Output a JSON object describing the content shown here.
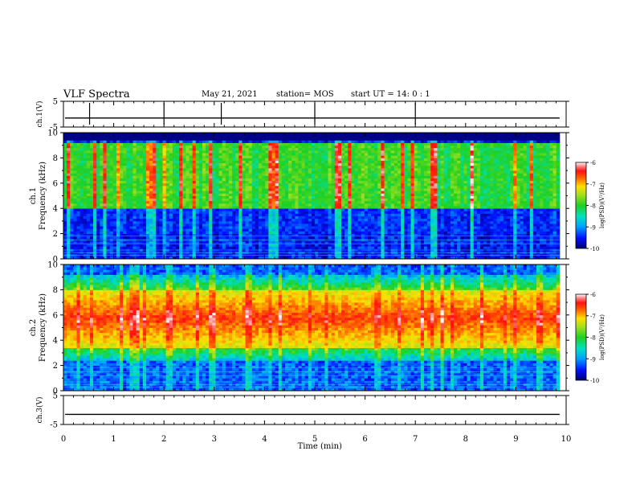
{
  "header": {
    "title": "VLF Spectra",
    "date": "May 21, 2021",
    "station": "station= MOS",
    "start": "start  UT =   14: 0  : 1"
  },
  "chart_data": {
    "type": "heatmap",
    "title": "VLF Spectra",
    "xlabel": "Time  (min)",
    "xlim": [
      0,
      10
    ],
    "x_ticks": [
      "0",
      "1",
      "2",
      "3",
      "4",
      "5",
      "6",
      "7",
      "8",
      "9",
      "10"
    ],
    "panels": [
      {
        "name": "ch.1(V)",
        "type": "line",
        "ylim": [
          -5,
          5
        ],
        "y_ticks": [
          "5",
          "-5"
        ],
        "trace_level": -1.5
      },
      {
        "name": "ch.1",
        "ylabel": "Frequency (kHz)",
        "type": "heatmap",
        "ylim": [
          0,
          10
        ],
        "y_ticks": [
          "0",
          "2",
          "4",
          "6",
          "8",
          "10"
        ],
        "colorbar": {
          "label": "log(PSD)(V²/Hz)",
          "ticks": [
            "-6",
            "-7",
            "-8",
            "-9",
            "-10"
          ],
          "range": [
            -10,
            -6
          ]
        },
        "band_khz": [
          4,
          9.2
        ]
      },
      {
        "name": "ch.2",
        "ylabel": "Frequency (kHz)",
        "type": "heatmap",
        "ylim": [
          0,
          10
        ],
        "y_ticks": [
          "0",
          "2",
          "4",
          "6",
          "8",
          "10"
        ],
        "colorbar": {
          "label": "log(PSD)(V²/Hz)",
          "ticks": [
            "-6",
            "-7",
            "-8",
            "-9",
            "-10"
          ],
          "range": [
            -10,
            -6
          ]
        },
        "band_khz": [
          3.5,
          8
        ]
      },
      {
        "name": "ch.3(V)",
        "type": "line",
        "ylim": [
          -5,
          5
        ],
        "y_ticks": [
          "5",
          "-5"
        ],
        "trace_level": -1.5
      }
    ]
  }
}
